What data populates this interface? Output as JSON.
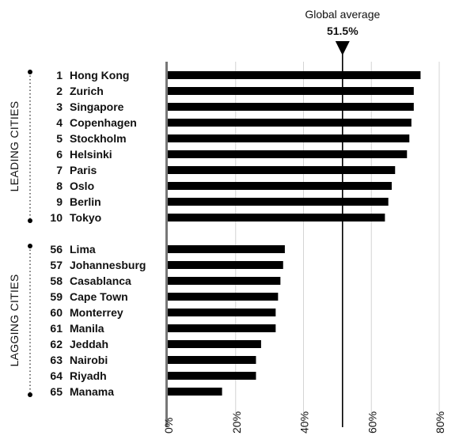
{
  "chart_data": {
    "type": "bar",
    "orientation": "horizontal",
    "reference_line": {
      "label": "Global average",
      "value": 51.5,
      "value_label": "51.5%"
    },
    "x_ticks": [
      "0%",
      "20%",
      "40%",
      "60%",
      "80%"
    ],
    "xlim": [
      0,
      80
    ],
    "groups": [
      {
        "name": "LEADING CITIES",
        "items": [
          {
            "rank": "1",
            "city": "Hong Kong",
            "value": 74.5
          },
          {
            "rank": "2",
            "city": "Zurich",
            "value": 72.5
          },
          {
            "rank": "3",
            "city": "Singapore",
            "value": 72.5
          },
          {
            "rank": "4",
            "city": "Copenhagen",
            "value": 71.8
          },
          {
            "rank": "5",
            "city": "Stockholm",
            "value": 71.2
          },
          {
            "rank": "6",
            "city": "Helsinki",
            "value": 70.5
          },
          {
            "rank": "7",
            "city": "Paris",
            "value": 67.0
          },
          {
            "rank": "8",
            "city": "Oslo",
            "value": 66.0
          },
          {
            "rank": "9",
            "city": "Berlin",
            "value": 65.0
          },
          {
            "rank": "10",
            "city": "Tokyo",
            "value": 64.0
          }
        ]
      },
      {
        "name": "LAGGING CITIES",
        "items": [
          {
            "rank": "56",
            "city": "Lima",
            "value": 34.5
          },
          {
            "rank": "57",
            "city": "Johannesburg",
            "value": 34.0
          },
          {
            "rank": "58",
            "city": "Casablanca",
            "value": 33.2
          },
          {
            "rank": "59",
            "city": "Cape Town",
            "value": 32.5
          },
          {
            "rank": "60",
            "city": "Monterrey",
            "value": 31.8
          },
          {
            "rank": "61",
            "city": "Manila",
            "value": 31.8
          },
          {
            "rank": "62",
            "city": "Jeddah",
            "value": 27.5
          },
          {
            "rank": "63",
            "city": "Nairobi",
            "value": 26.0
          },
          {
            "rank": "64",
            "city": "Riyadh",
            "value": 26.0
          },
          {
            "rank": "65",
            "city": "Manama",
            "value": 16.0
          }
        ]
      }
    ]
  }
}
